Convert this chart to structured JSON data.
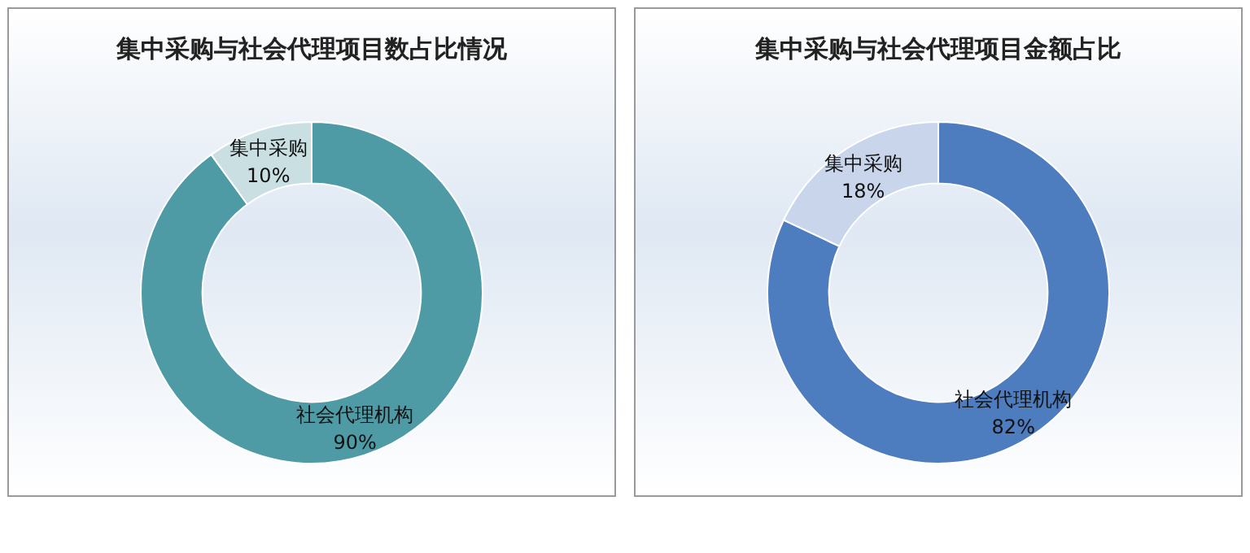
{
  "chart_data": [
    {
      "type": "donut",
      "title": "集中采购与社会代理项目数占比情况",
      "categories": [
        "社会代理机构",
        "集中采购"
      ],
      "values": [
        90,
        10
      ],
      "colors": [
        "#4e9ba6",
        "#c9dfe2"
      ],
      "value_labels": [
        "90%",
        "10%"
      ]
    },
    {
      "type": "donut",
      "title": "集中采购与社会代理项目金额占比",
      "categories": [
        "社会代理机构",
        "集中采购"
      ],
      "values": [
        82,
        18
      ],
      "colors": [
        "#4d7cbf",
        "#c8d5eb"
      ],
      "value_labels": [
        "82%",
        "18%"
      ]
    }
  ]
}
